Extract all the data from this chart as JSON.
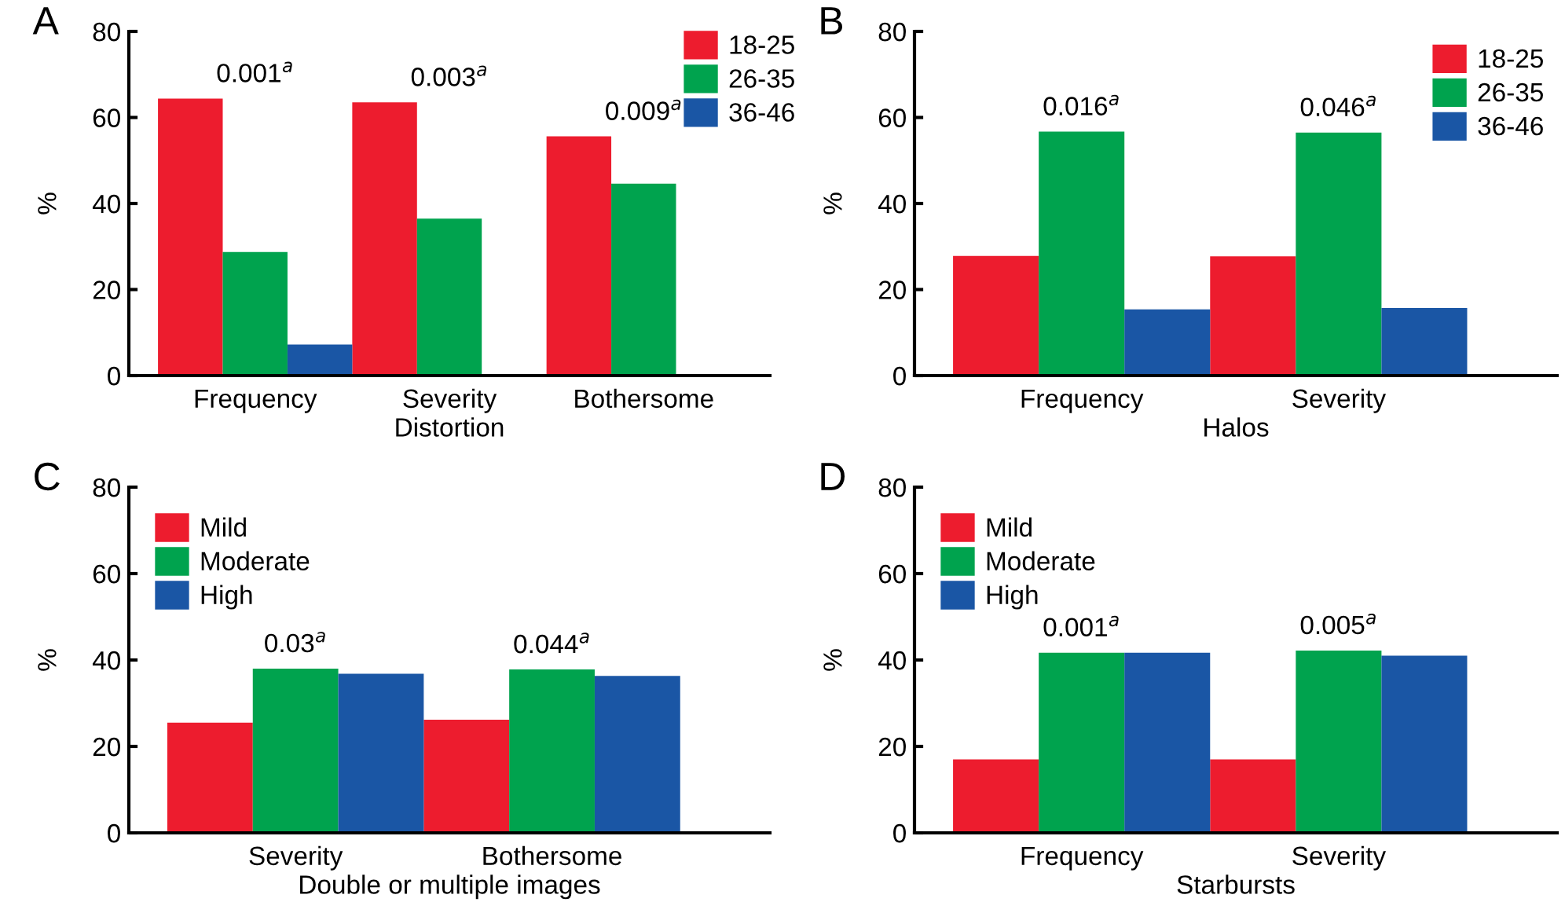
{
  "chart_data": [
    {
      "type": "bar",
      "title": "A",
      "xlabel": "Distortion",
      "ylabel": "%",
      "categories": [
        "Frequency",
        "Severity",
        "Bothersome"
      ],
      "series": [
        {
          "name": "18-25",
          "color": "#ed1c2e",
          "values": [
            64.4,
            63.5,
            55.6
          ]
        },
        {
          "name": "26-35",
          "color": "#00a34e",
          "values": [
            28.7,
            36.5,
            44.6
          ]
        },
        {
          "name": "36-46",
          "color": "#1a56a5",
          "values": [
            7.2,
            0,
            0
          ]
        }
      ],
      "ylim": [
        0,
        80
      ],
      "yticks": [
        0,
        20,
        40,
        60,
        80
      ],
      "grid": false,
      "legend": "top right",
      "annotations": [
        "0.001$^{a}$",
        "0.003$^{a}$",
        "0.009$^{a}$"
      ]
    },
    {
      "type": "bar",
      "title": "B",
      "xlabel": "Halos",
      "ylabel": "%",
      "categories": [
        "Frequency",
        "Severity"
      ],
      "series": [
        {
          "name": "18-25",
          "color": "#ed1c2e",
          "values": [
            27.8,
            27.7
          ]
        },
        {
          "name": "26-35",
          "color": "#00a34e",
          "values": [
            56.7,
            56.5
          ]
        },
        {
          "name": "36-46",
          "color": "#1a56a5",
          "values": [
            15.4,
            15.7
          ]
        }
      ],
      "ylim": [
        0,
        80
      ],
      "yticks": [
        0,
        20,
        40,
        60,
        80
      ],
      "grid": false,
      "legend": "top right",
      "annotations": [
        {
          "text": "0.016$^{a}$",
          "x": "Frequency",
          "y": 56.7
        },
        {
          "text": "0.046$^{a}$",
          "x": "Severity",
          "y": 56.5
        }
      ]
    },
    {
      "type": "bar",
      "title": "C",
      "xlabel": "Double or multiple images",
      "ylabel": "%",
      "categories": [
        "Severity",
        "Bothersome"
      ],
      "series": [
        {
          "name": "Mild",
          "color": "#ed1c2e",
          "values": [
            25.5,
            26.2
          ]
        },
        {
          "name": "Moderate",
          "color": "#00a34e",
          "values": [
            38.0,
            37.8
          ]
        },
        {
          "name": "High",
          "color": "#1a56a5",
          "values": [
            36.8,
            36.3
          ]
        }
      ],
      "ylim": [
        0,
        80
      ],
      "yticks": [
        0,
        20,
        40,
        60,
        80
      ],
      "grid": false,
      "legend": "top left",
      "annotations": [
        {
          "text": "0.03$^{a}$",
          "x": "Severity",
          "y": 38.0
        },
        {
          "text": "0.044$^{a}$",
          "x": "Bothersome",
          "y": 37.8
        }
      ]
    },
    {
      "type": "bar",
      "title": "D",
      "xlabel": "Starbursts",
      "ylabel": "%",
      "categories": [
        "Frequency",
        "Severity"
      ],
      "series": [
        {
          "name": "Mild",
          "color": "#ed1c2e",
          "values": [
            17.0,
            17.0
          ]
        },
        {
          "name": "Moderate",
          "color": "#00a34e",
          "values": [
            41.7,
            42.2
          ]
        },
        {
          "name": "High",
          "color": "#1a56a5",
          "values": [
            41.7,
            41.0
          ]
        }
      ],
      "ylim": [
        0,
        80
      ],
      "yticks": [
        0,
        20,
        40,
        60,
        80
      ],
      "grid": false,
      "legend": "top left",
      "annotations": [
        {
          "text": "0.001$^{a}$",
          "x": "Frequency",
          "y": 41.7
        },
        {
          "text": "0.005$^{a}$",
          "x": "Severity",
          "y": 42.2
        }
      ]
    }
  ]
}
